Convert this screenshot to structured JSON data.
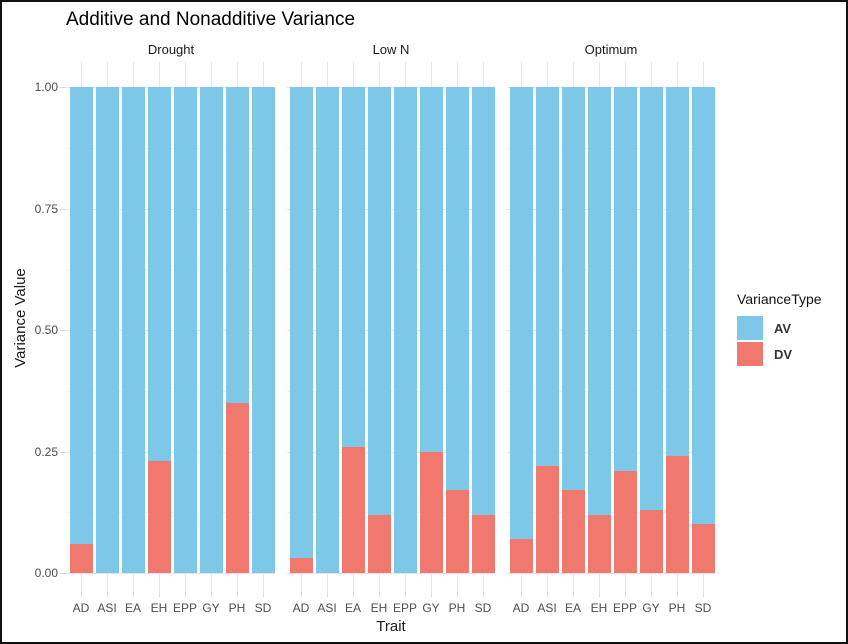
{
  "title": "Additive and Nonadditive Variance",
  "axes": {
    "x_title": "Trait",
    "y_title": "Variance Value",
    "y_ticks": [
      {
        "label": "0.00",
        "value": 0
      },
      {
        "label": "0.25",
        "value": 0.25
      },
      {
        "label": "0.50",
        "value": 0.5
      },
      {
        "label": "0.75",
        "value": 0.75
      },
      {
        "label": "1.00",
        "value": 1
      }
    ]
  },
  "legend": {
    "title": "VarianceType",
    "items": [
      {
        "label": "AV",
        "color": "#7DC8E8"
      },
      {
        "label": "DV",
        "color": "#F0786E"
      }
    ]
  },
  "chart_data": {
    "type": "bar",
    "stacked": true,
    "title": "Additive and Nonadditive Variance",
    "xlabel": "Trait",
    "ylabel": "Variance Value",
    "ylim": [
      0,
      1
    ],
    "grid": true,
    "legend_title": "VarianceType",
    "legend_position": "right",
    "categories": [
      "AD",
      "ASI",
      "EA",
      "EH",
      "EPP",
      "GY",
      "PH",
      "SD"
    ],
    "colors": {
      "AV": "#7DC8E8",
      "DV": "#F0786E"
    },
    "facets": [
      {
        "label": "Drought",
        "series": [
          {
            "name": "AV",
            "values": [
              0.94,
              1.0,
              1.0,
              0.77,
              1.0,
              1.0,
              0.65,
              1.0
            ]
          },
          {
            "name": "DV",
            "values": [
              0.06,
              0.0,
              0.0,
              0.23,
              0.0,
              0.0,
              0.35,
              0.0
            ]
          }
        ]
      },
      {
        "label": "Low N",
        "series": [
          {
            "name": "AV",
            "values": [
              0.97,
              1.0,
              0.74,
              0.88,
              1.0,
              0.75,
              0.83,
              0.88
            ]
          },
          {
            "name": "DV",
            "values": [
              0.03,
              0.0,
              0.26,
              0.12,
              0.0,
              0.25,
              0.17,
              0.12
            ]
          }
        ]
      },
      {
        "label": "Optimum",
        "series": [
          {
            "name": "AV",
            "values": [
              0.93,
              0.78,
              0.83,
              0.88,
              0.79,
              0.87,
              0.76,
              0.9
            ]
          },
          {
            "name": "DV",
            "values": [
              0.07,
              0.22,
              0.17,
              0.12,
              0.21,
              0.13,
              0.24,
              0.1
            ]
          }
        ]
      }
    ]
  }
}
